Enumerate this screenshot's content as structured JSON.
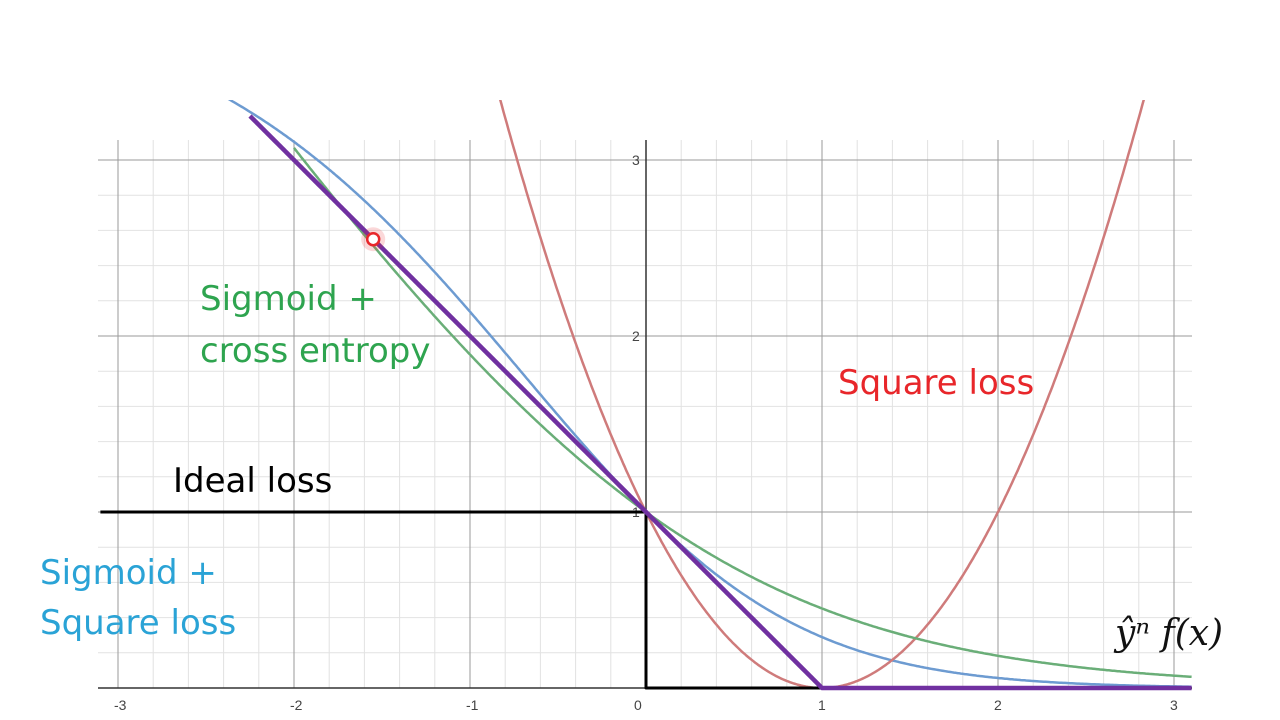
{
  "chart_data": {
    "type": "line",
    "xlim": [
      -3.1,
      3.1
    ],
    "ylim": [
      0,
      3.1
    ],
    "grid": true,
    "x_ticks": [
      {
        "value": -3,
        "label": "-3"
      },
      {
        "value": -2,
        "label": "-2"
      },
      {
        "value": -1,
        "label": "-1"
      },
      {
        "value": 0,
        "label": "0"
      },
      {
        "value": 1,
        "label": "1"
      },
      {
        "value": 2,
        "label": "2"
      },
      {
        "value": 3,
        "label": "3"
      }
    ],
    "y_ticks": [
      {
        "value": 1,
        "label": "1"
      },
      {
        "value": 2,
        "label": "2"
      },
      {
        "value": 3,
        "label": "3"
      }
    ],
    "xlabel": "ŷⁿ f(x)",
    "series": [
      {
        "name": "Ideal loss",
        "color": "#000000",
        "x": [
          -3.1,
          0,
          0,
          3.1
        ],
        "y": [
          1,
          1,
          0,
          0
        ]
      },
      {
        "name": "Square loss",
        "color": "#cf7b7b",
        "formula": "(x - 1)^2"
      },
      {
        "name": "Sigmoid + Square loss",
        "color": "#6d9bd1",
        "formula": "(sigmoid(x) - 1)^2 * 4"
      },
      {
        "name": "Sigmoid + cross entropy",
        "color": "#6aae78",
        "formula": "ln(1 + e^(-x)) / ln 2"
      },
      {
        "name": "",
        "color": "#7030a0",
        "formula": "max(0, 1 - x)"
      }
    ],
    "highlight_point": {
      "x": -1.55,
      "y": 2.55,
      "color": "#e8262a"
    }
  },
  "labels": {
    "ideal": "Ideal loss",
    "square": "Square loss",
    "ce_line1": "Sigmoid +",
    "ce_line2": "cross entropy",
    "sq_line1": "Sigmoid +",
    "sq_line2": "Square loss"
  },
  "colors": {
    "ideal": "#000000",
    "square": "#e8262a",
    "ce": "#2ea44f",
    "sq": "#2aa3d6"
  }
}
